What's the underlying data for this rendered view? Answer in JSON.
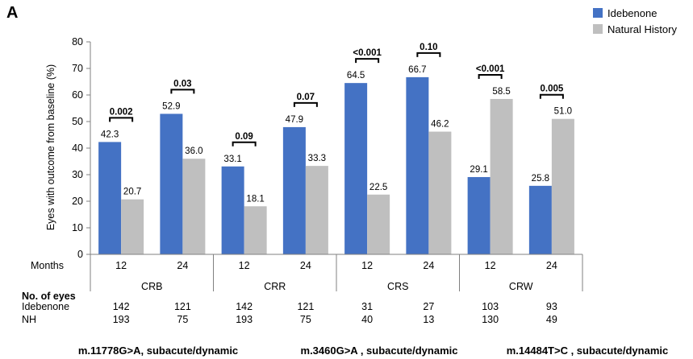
{
  "panel_label": "A",
  "chart_data": {
    "type": "bar",
    "ylabel": "Eyes with outcome from baseline (%)",
    "ylim": [
      0,
      80
    ],
    "yticks": [
      0,
      10,
      20,
      30,
      40,
      50,
      60,
      70,
      80
    ],
    "grid": false,
    "legend_position": "top-right",
    "series": [
      {
        "name": "Idebenone",
        "color": "#4472C4",
        "values": [
          42.3,
          52.9,
          33.1,
          47.9,
          64.5,
          66.7,
          29.1,
          25.8
        ]
      },
      {
        "name": "Natural History",
        "color": "#BFBFBF",
        "values": [
          20.7,
          36.0,
          18.1,
          33.3,
          22.5,
          46.2,
          58.5,
          51.0
        ]
      }
    ],
    "value_labels": [
      [
        "42.3",
        "52.9",
        "33.1",
        "47.9",
        "64.5",
        "66.7",
        "29.1",
        "25.8"
      ],
      [
        "20.7",
        "36.0",
        "18.1",
        "33.3",
        "22.5",
        "46.2",
        "58.5",
        "51.0"
      ]
    ],
    "months_label": "Months",
    "months": [
      "12",
      "24",
      "12",
      "24",
      "12",
      "24",
      "12",
      "24"
    ],
    "groups": [
      "CRB",
      "CRR",
      "CRS",
      "CRW"
    ],
    "p_values": [
      "0.002",
      "0.03",
      "0.09",
      "0.07",
      "<0.001",
      "0.10",
      "<0.001",
      "0.005"
    ],
    "eyes_header": "No. of eyes",
    "eyes": [
      {
        "label": "Idebenone",
        "values": [
          "142",
          "121",
          "142",
          "121",
          "31",
          "27",
          "103",
          "93"
        ]
      },
      {
        "label": "NH",
        "values": [
          "193",
          "75",
          "193",
          "75",
          "40",
          "13",
          "130",
          "49"
        ]
      }
    ],
    "mutations": [
      "m.11778G>A, subacute/dynamic",
      "m.3460G>A , subacute/dynamic",
      "m.14484T>C , subacute/dynamic"
    ]
  }
}
